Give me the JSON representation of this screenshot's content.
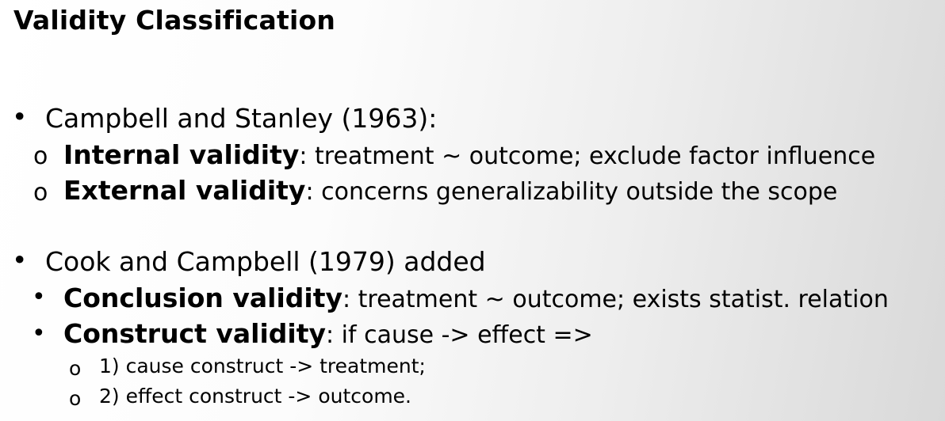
{
  "slide": {
    "title": "Validity Classification",
    "section1": {
      "bullet": "•",
      "heading": "Campbell and Stanley (1963):",
      "items": [
        {
          "marker": "o",
          "term": "Internal validity",
          "text": ": treatment ~ outcome; exclude factor influence"
        },
        {
          "marker": "o",
          "term": "External validity",
          "text": ": concerns generalizability outside the scope"
        }
      ]
    },
    "section2": {
      "bullet": "•",
      "heading": "Cook and Campbell (1979) added",
      "items": [
        {
          "marker": "•",
          "term": "Conclusion validity",
          "text": ": treatment ~ outcome; exists statist. relation"
        },
        {
          "marker": "•",
          "term": "Construct validity",
          "text": ": if cause -> effect =>"
        }
      ],
      "subitems": [
        {
          "marker": "o",
          "text": "1) cause construct -> treatment;"
        },
        {
          "marker": "o",
          "text": "2) effect construct -> outcome."
        }
      ]
    }
  }
}
